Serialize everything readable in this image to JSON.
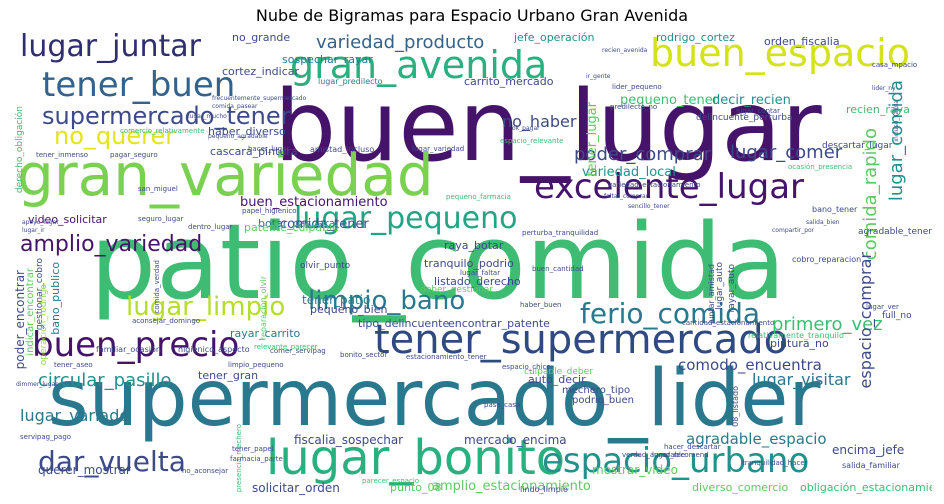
{
  "title": "Nube de Bigramas para Espacio Urbano Gran Avenida",
  "palette": {
    "dark_purple": "#46136b",
    "purple": "#4a2a7a",
    "indigo": "#3d4a8a",
    "blue": "#33638d",
    "teal": "#2a788e",
    "teal_green": "#21918c",
    "green": "#2ab07f",
    "bright_green": "#5ec962",
    "lime": "#95d840",
    "yellow": "#d4e21a"
  },
  "words": [
    {
      "text": "patio_comida",
      "color": "#3fbc73"
    },
    {
      "text": "buen_lugar",
      "color": "#46136b"
    },
    {
      "text": "supermercado_lider",
      "color": "#2a788e"
    },
    {
      "text": "gran_variedad",
      "color": "#7ad151"
    },
    {
      "text": "tener_supermercado",
      "color": "#2f4a82"
    },
    {
      "text": "lugar_bonito",
      "color": "#2ab07f"
    },
    {
      "text": "gran_avenida",
      "color": "#2ab07f"
    },
    {
      "text": "buen_espacio",
      "color": "#d4e21a"
    },
    {
      "text": "excelente_lugar",
      "color": "#46136b"
    },
    {
      "text": "espacio_urbano",
      "color": "#21918c"
    },
    {
      "text": "buen_precio",
      "color": "#46136b"
    },
    {
      "text": "tener_buen",
      "color": "#33638d"
    },
    {
      "text": "lugar_juntar",
      "color": "#2f2f6f"
    },
    {
      "text": "lugar_pequeno",
      "color": "#21a585"
    },
    {
      "text": "ferio_comida",
      "color": "#2a788e"
    },
    {
      "text": "limpio_bano",
      "color": "#2a788e"
    },
    {
      "text": "lugar_limpio",
      "color": "#b5de2b"
    },
    {
      "text": "supermercado_tener",
      "color": "#3d4a8a"
    },
    {
      "text": "no_querer",
      "color": "#e5e419"
    },
    {
      "text": "variedad_producto",
      "color": "#33638d"
    },
    {
      "text": "amplio_variedad",
      "color": "#46136b"
    },
    {
      "text": "dar_vuelta",
      "color": "#3d4a8a"
    },
    {
      "text": "lugar_comida",
      "color": "#21918c"
    },
    {
      "text": "comida_rapido",
      "color": "#5ec962"
    },
    {
      "text": "lugar_comer",
      "color": "#3d4a8a"
    },
    {
      "text": "poder_comprar",
      "color": "#3d4a8a"
    },
    {
      "text": "variedad_local",
      "color": "#21918c"
    },
    {
      "text": "no_haber",
      "color": "#3d4a8a"
    },
    {
      "text": "circular_pasillo",
      "color": "#21918c"
    },
    {
      "text": "lugar_visitar",
      "color": "#2a788e"
    },
    {
      "text": "primero_vez",
      "color": "#3fbc73"
    },
    {
      "text": "espacio_comprar",
      "color": "#3d4a8a"
    },
    {
      "text": "comodo_encuentra",
      "color": "#3d4a8a"
    },
    {
      "text": "lugar_variado",
      "color": "#2a788e"
    },
    {
      "text": "agradable_espacio",
      "color": "#2a788e"
    },
    {
      "text": "amplio_estacionamiento",
      "color": "#5ec962"
    },
    {
      "text": "buen_estacionamiento",
      "color": "#46136b"
    },
    {
      "text": "comida_tener",
      "color": "#3d4a8a"
    },
    {
      "text": "pequeno_tener",
      "color": "#3fbc73"
    },
    {
      "text": "tener_lugar",
      "color": "#5ec962"
    },
    {
      "text": "decir_recien",
      "color": "#21918c"
    },
    {
      "text": "jefe_operación",
      "color": "#21918c"
    },
    {
      "text": "rodrigo_cortez",
      "color": "#21918c"
    },
    {
      "text": "orden_fiscalia",
      "color": "#3d4a8a"
    },
    {
      "text": "no_grande",
      "color": "#3d4a8a"
    },
    {
      "text": "sospechar_rayar",
      "color": "#2a788e"
    },
    {
      "text": "cortez_indicar",
      "color": "#3d4a8a"
    },
    {
      "text": "carrito_mercado",
      "color": "#3d4a8a"
    },
    {
      "text": "lugar_predilecto",
      "color": "#2a788e"
    },
    {
      "text": "recien_raya",
      "color": "#3fbc73"
    },
    {
      "text": "haber_diverso",
      "color": "#3d4a8a"
    },
    {
      "text": "cascara_pintura",
      "color": "#3d4a8a"
    },
    {
      "text": "amistad_incluso",
      "color": "#3d4a8a"
    },
    {
      "text": "video_solicitar",
      "color": "#46136b"
    },
    {
      "text": "botar_cascara",
      "color": "#2a788e"
    },
    {
      "text": "raya_botar",
      "color": "#3d4a8a"
    },
    {
      "text": "tranquilo_podrio",
      "color": "#3d4a8a"
    },
    {
      "text": "listado_derecho",
      "color": "#3d4a8a"
    },
    {
      "text": "tener_patio",
      "color": "#2a788e"
    },
    {
      "text": "pequeno_bien",
      "color": "#3d4a8a"
    },
    {
      "text": "tipo_delincuente",
      "color": "#3d4a8a"
    },
    {
      "text": "encontrar_patente",
      "color": "#3d4a8a"
    },
    {
      "text": "pintura_no",
      "color": "#3d4a8a"
    },
    {
      "text": "auto_decir",
      "color": "#3d4a8a"
    },
    {
      "text": "tener_gran",
      "color": "#3d4a8a"
    },
    {
      "text": "rayar_carrito",
      "color": "#2a788e"
    },
    {
      "text": "bano_publico",
      "color": "#2a788e"
    },
    {
      "text": "poder_encontrar",
      "color": "#3d4a8a"
    },
    {
      "text": "mostrar_video",
      "color": "#5ec962"
    },
    {
      "text": "encima_jefe",
      "color": "#3d4a8a"
    },
    {
      "text": "querer_mostrar",
      "color": "#3d4a8a"
    },
    {
      "text": "fiscalia_sospechar",
      "color": "#3d4a8a"
    },
    {
      "text": "mercado_encima",
      "color": "#3d4a8a"
    },
    {
      "text": "solicitar_orden",
      "color": "#3d4a8a"
    },
    {
      "text": "punto_08",
      "color": "#5ec962"
    },
    {
      "text": "diverso_comercio",
      "color": "#5ec962"
    },
    {
      "text": "obligación_estacionamiento",
      "color": "#3fbc73"
    },
    {
      "text": "patente_culpable",
      "color": "#5ec962"
    },
    {
      "text": "deber_gestionar",
      "color": "#5ec962"
    },
    {
      "text": "culpable_deber",
      "color": "#5ec962"
    },
    {
      "text": "podrio_buen",
      "color": "#3d4a8a"
    },
    {
      "text": "mechero_tipo",
      "color": "#3d4a8a"
    },
    {
      "text": "delincuente_perturba",
      "color": "#3d4a8a"
    },
    {
      "text": "full_no",
      "color": "#3d4a8a"
    },
    {
      "text": "agradable_tener",
      "color": "#3d4a8a"
    },
    {
      "text": "descartar_lugar",
      "color": "#3d4a8a"
    },
    {
      "text": "indicar_encontrar",
      "color": "#5ec962"
    },
    {
      "text": "gestionar_cobro",
      "color": "#3d4a8a"
    },
    {
      "text": "operación_rodrigo",
      "color": "#95d840"
    },
    {
      "text": "derecho_obligación",
      "color": "#3fbc73"
    },
    {
      "text": "lugar_auto",
      "color": "#3d4a8a"
    },
    {
      "text": "rayar_auto",
      "color": "#3d4a8a"
    },
    {
      "text": "olvir_punto",
      "color": "#3d4a8a"
    },
    {
      "text": "bano_tener",
      "color": "#3d4a8a"
    },
    {
      "text": "cobro_reparacion",
      "color": "#3d4a8a"
    },
    {
      "text": "08_listado",
      "color": "#3d4a8a"
    },
    {
      "text": "juntar_amistad",
      "color": "#3d4a8a"
    },
    {
      "text": "salida_familiar",
      "color": "#3d4a8a"
    },
    {
      "text": "lindo_limpio",
      "color": "#3d4a8a"
    },
    {
      "text": "verdad_agradable",
      "color": "#3d4a8a"
    },
    {
      "text": "espacio_relevante",
      "color": "#3fbc73"
    },
    {
      "text": "perturba_tranquilidad",
      "color": "#3d4a8a"
    },
    {
      "text": "tranquilidad_hacer",
      "color": "#3d4a8a"
    },
    {
      "text": "relativamente_tranquilo",
      "color": "#3fbc73"
    },
    {
      "text": "familiar_ocasión",
      "color": "#3d4a8a"
    },
    {
      "text": "higienico_aspecto",
      "color": "#3d4a8a"
    },
    {
      "text": "limpio_pequeno",
      "color": "#3d4a8a"
    },
    {
      "text": "relevante_parecer",
      "color": "#3fbc73"
    },
    {
      "text": "reparacion_olvir",
      "color": "#5ec962"
    },
    {
      "text": "buen_cantidad",
      "color": "#3d4a8a"
    },
    {
      "text": "cantidad_estacionamiento",
      "color": "#3d4a8a"
    },
    {
      "text": "comer_servipag",
      "color": "#3d4a8a"
    },
    {
      "text": "papel_higienico",
      "color": "#3d4a8a"
    },
    {
      "text": "dentro_lugar",
      "color": "#3d4a8a"
    },
    {
      "text": "pequeno_farmacia",
      "color": "#3fbc73"
    },
    {
      "text": "variedad_estacionamiento",
      "color": "#3d4a8a"
    },
    {
      "text": "ocasión_presencia",
      "color": "#3fbc73"
    },
    {
      "text": "bonito_sector",
      "color": "#3d4a8a"
    },
    {
      "text": "estacionamiento_tener",
      "color": "#3d4a8a"
    },
    {
      "text": "espacio_chico",
      "color": "#3d4a8a"
    },
    {
      "text": "haber_buen",
      "color": "#3d4a8a"
    },
    {
      "text": "lugar_recomend",
      "color": "#3d4a8a"
    },
    {
      "text": "paso_casa",
      "color": "#3d4a8a"
    },
    {
      "text": "lider_pequeno",
      "color": "#3d4a8a"
    },
    {
      "text": "predilecto_no",
      "color": "#3d4a8a"
    },
    {
      "text": "casa_mpacio",
      "color": "#3d4a8a"
    },
    {
      "text": "lugar_contar",
      "color": "#3d4a8a"
    },
    {
      "text": "tener_inmenso",
      "color": "#3d4a8a"
    },
    {
      "text": "pagar_seguro",
      "color": "#3d4a8a"
    },
    {
      "text": "hacer_lugar",
      "color": "#3d4a8a"
    },
    {
      "text": "lugar_variedad",
      "color": "#3d4a8a"
    },
    {
      "text": "comercio_relativamente",
      "color": "#3fbc73"
    },
    {
      "text": "san_miguel",
      "color": "#3d4a8a"
    },
    {
      "text": "seguro_lugar",
      "color": "#3d4a8a"
    },
    {
      "text": "servipag_pago",
      "color": "#3d4a8a"
    },
    {
      "text": "presencia_mechero",
      "color": "#3fbc73"
    },
    {
      "text": "hacer_descartar",
      "color": "#3d4a8a"
    },
    {
      "text": "no_aconsejar",
      "color": "#3d4a8a"
    },
    {
      "text": "aconsejar_domingo",
      "color": "#3d4a8a"
    },
    {
      "text": "comida_verdad",
      "color": "#3d4a8a"
    },
    {
      "text": "parecer_espacio",
      "color": "#3fbc73"
    },
    {
      "text": "tener_aseo",
      "color": "#3d4a8a"
    },
    {
      "text": "lugar_faltar",
      "color": "#3d4a8a"
    },
    {
      "text": "lugar_ver",
      "color": "#3d4a8a"
    },
    {
      "text": "tener_papel",
      "color": "#3d4a8a"
    },
    {
      "text": "farmacia_parte",
      "color": "#3d4a8a"
    },
    {
      "text": "dimmer_lugar",
      "color": "#3d4a8a"
    },
    {
      "text": "faltar_comprar",
      "color": "#3d4a8a"
    },
    {
      "text": "sencillo_tener",
      "color": "#3d4a8a"
    },
    {
      "text": "lugar_ir",
      "color": "#3d4a8a"
    },
    {
      "text": "apoyo_lugar",
      "color": "#3d4a8a"
    },
    {
      "text": "salida_bien",
      "color": "#3d4a8a"
    },
    {
      "text": "lider_ny",
      "color": "#3d4a8a"
    },
    {
      "text": "ir_gente",
      "color": "#3d4a8a"
    },
    {
      "text": "ok_pagar",
      "color": "#3d4a8a"
    },
    {
      "text": "incluso_salida",
      "color": "#3d4a8a"
    },
    {
      "text": "frecuentemente_supermercado",
      "color": "#3d4a8a"
    },
    {
      "text": "comida_pasear",
      "color": "#3d4a8a"
    },
    {
      "text": "pequeno_agradable",
      "color": "#3d4a8a"
    },
    {
      "text": "recien_avenida",
      "color": "#3d4a8a"
    },
    {
      "text": "lugar_mucho",
      "color": "#3d4a8a"
    },
    {
      "text": "compartir_por",
      "color": "#3d4a8a"
    }
  ]
}
